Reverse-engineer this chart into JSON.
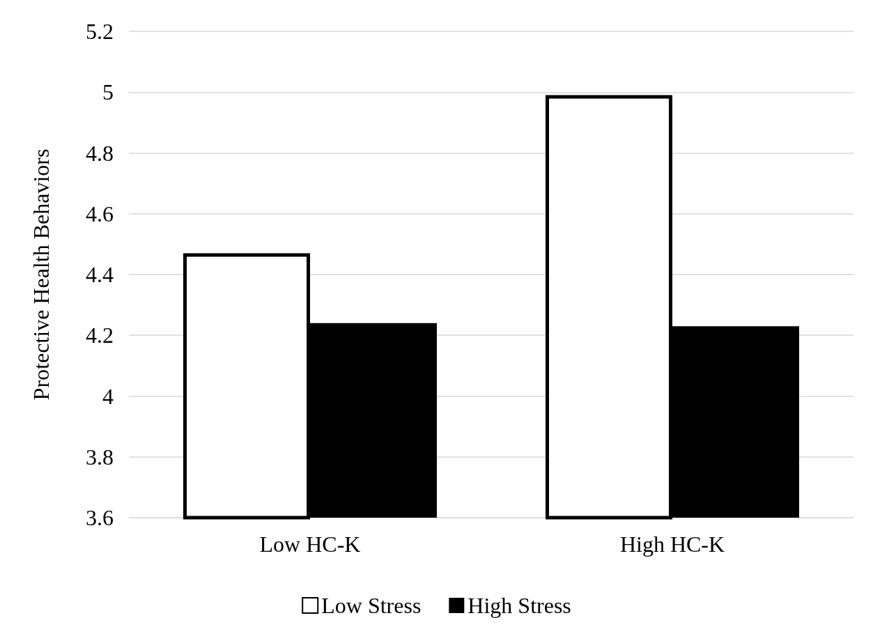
{
  "chart_data": {
    "type": "bar",
    "ylabel": "Protective Health Behaviors",
    "categories": [
      "Low HC-K",
      "High HC-K"
    ],
    "series": [
      {
        "name": "Low Stress",
        "color": "#ffffff",
        "values": [
          4.47,
          4.99
        ]
      },
      {
        "name": "High Stress",
        "color": "#000000",
        "values": [
          4.24,
          4.23
        ]
      }
    ],
    "ylim": [
      3.6,
      5.2
    ],
    "yticks": [
      3.6,
      3.8,
      4,
      4.2,
      4.4,
      4.6,
      4.8,
      5,
      5.2
    ],
    "grid": "y",
    "legend": "bottom"
  }
}
